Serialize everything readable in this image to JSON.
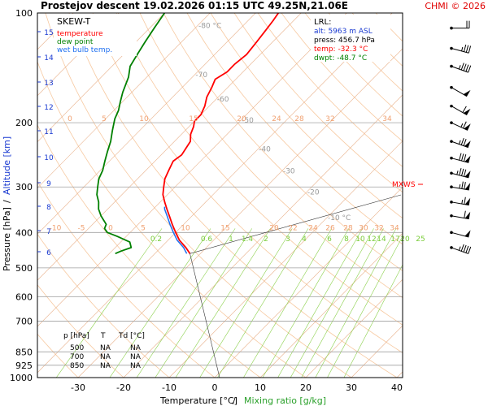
{
  "header": {
    "title": "Prostejov   descent   19.02.2026 01:15 UTC   49.25N,21.06E",
    "copyright": "CHMI © 2026"
  },
  "legend": {
    "title": "SKEW-T",
    "items": [
      {
        "label": "temperature",
        "color": "#ff0000"
      },
      {
        "label": "dew point",
        "color": "#008000"
      },
      {
        "label": "wet bulb temp.",
        "color": "#1e6ff0"
      }
    ]
  },
  "lrl": {
    "title": "LRL:",
    "rows": [
      {
        "text": "alt: 5963 m ASL",
        "color": "#1a3ad1"
      },
      {
        "text": "press: 456.7 hPa",
        "color": "#000000"
      },
      {
        "text": "temp: -32.3 °C",
        "color": "#ff0000"
      },
      {
        "text": "dwpt: -48.7 °C",
        "color": "#008000"
      }
    ]
  },
  "mxws_label": "MXWS",
  "level_table": {
    "headers": [
      "p [hPa]",
      "T",
      "Td [°C]"
    ],
    "rows": [
      [
        "500",
        "NA",
        "NA"
      ],
      [
        "700",
        "NA",
        "NA"
      ],
      [
        "850",
        "NA",
        "NA"
      ]
    ]
  },
  "chart_data": {
    "type": "line",
    "title": "Prostejov   descent   19.02.2026 01:15 UTC   49.25N,21.06E",
    "xlabel": "Temperature [°C]",
    "xlabel2": "Mixing ratio [g/kg]",
    "ylabel": "Pressure [hPa]",
    "ylabel2": "Altitude [km]",
    "x_ticks": [
      -30,
      -20,
      -10,
      0,
      10,
      20,
      30,
      40
    ],
    "pressure_ticks": [
      100,
      200,
      300,
      400,
      500,
      600,
      700,
      850,
      925,
      1000
    ],
    "altitude_ticks": [
      4,
      5,
      6,
      7,
      8,
      9,
      10,
      11,
      12,
      13,
      14,
      15
    ],
    "altitude_labels": [
      "6",
      "7",
      "8",
      "9",
      "10",
      "11",
      "12",
      "13",
      "14",
      "15"
    ],
    "isotherm_labels": [
      "-80 °C",
      "-70",
      "-60",
      "-50",
      "-40",
      "-30",
      "-20",
      "-10 °C"
    ],
    "isotherm_values": [
      -80,
      -70,
      -60,
      -50,
      -40,
      -30,
      -20,
      -10
    ],
    "dry_adiabat_labels_200": [
      "0",
      "5",
      "10",
      "15",
      "20",
      "24",
      "28",
      "32",
      "34"
    ],
    "dry_adiabat_labels_400": [
      "-10",
      "-5",
      "0",
      "5",
      "10",
      "15",
      "20",
      "22",
      "24",
      "26",
      "28",
      "30",
      "32",
      "34"
    ],
    "mixing_ratio_labels": [
      "0.2",
      "0.6",
      "1",
      "1.4",
      "2",
      "3",
      "4",
      "6",
      "8",
      "10",
      "12",
      "14",
      "17",
      "20",
      "25"
    ],
    "mixing_ratio_values": [
      0.2,
      0.6,
      1,
      1.4,
      2,
      3,
      4,
      6,
      8,
      10,
      12,
      14,
      17,
      20,
      25
    ],
    "mxws_pressure": 295,
    "series": [
      {
        "name": "temperature",
        "color": "#ff0000",
        "points": [
          [
            457,
            -32.3
          ],
          [
            440,
            -34.5
          ],
          [
            420,
            -37.5
          ],
          [
            400,
            -40.0
          ],
          [
            380,
            -42.5
          ],
          [
            360,
            -45.0
          ],
          [
            345,
            -47.0
          ],
          [
            330,
            -49.0
          ],
          [
            315,
            -51.0
          ],
          [
            300,
            -52.5
          ],
          [
            285,
            -54.0
          ],
          [
            270,
            -55.0
          ],
          [
            255,
            -56.0
          ],
          [
            245,
            -55.5
          ],
          [
            235,
            -56.0
          ],
          [
            225,
            -56.5
          ],
          [
            215,
            -58.0
          ],
          [
            205,
            -59.0
          ],
          [
            198,
            -60.0
          ],
          [
            190,
            -60.0
          ],
          [
            180,
            -61.0
          ],
          [
            170,
            -62.5
          ],
          [
            160,
            -63.5
          ],
          [
            152,
            -64.5
          ],
          [
            145,
            -63.5
          ],
          [
            138,
            -63.5
          ],
          [
            130,
            -63.0
          ],
          [
            120,
            -63.5
          ],
          [
            112,
            -64.0
          ],
          [
            105,
            -64.5
          ],
          [
            100,
            -65.0
          ]
        ]
      },
      {
        "name": "dew point",
        "color": "#008000",
        "points": [
          [
            457,
            -48.7
          ],
          [
            450,
            -48.0
          ],
          [
            440,
            -46.5
          ],
          [
            425,
            -48.0
          ],
          [
            410,
            -52.0
          ],
          [
            400,
            -55.0
          ],
          [
            390,
            -56.5
          ],
          [
            380,
            -57.0
          ],
          [
            370,
            -58.5
          ],
          [
            360,
            -60.0
          ],
          [
            345,
            -62.0
          ],
          [
            330,
            -63.5
          ],
          [
            315,
            -65.5
          ],
          [
            300,
            -67.0
          ],
          [
            285,
            -68.5
          ],
          [
            270,
            -69.5
          ],
          [
            255,
            -71.0
          ],
          [
            240,
            -72.5
          ],
          [
            225,
            -74.0
          ],
          [
            210,
            -76.0
          ],
          [
            195,
            -78.0
          ],
          [
            185,
            -79.0
          ],
          [
            175,
            -80.5
          ],
          [
            165,
            -82.0
          ],
          [
            150,
            -84.0
          ],
          [
            140,
            -86.0
          ],
          [
            130,
            -87.0
          ],
          [
            120,
            -88.0
          ],
          [
            110,
            -89.0
          ],
          [
            100,
            -90.0
          ]
        ]
      },
      {
        "name": "wet bulb temp.",
        "color": "#1e6ff0",
        "points": [
          [
            457,
            -33.0
          ],
          [
            440,
            -35.0
          ],
          [
            420,
            -38.0
          ],
          [
            400,
            -40.5
          ],
          [
            380,
            -43.0
          ],
          [
            360,
            -45.5
          ],
          [
            345,
            -47.5
          ],
          [
            340,
            -48.0
          ]
        ]
      }
    ],
    "wind_barbs": [
      {
        "p": 110,
        "dir": 270,
        "speed": 20
      },
      {
        "p": 125,
        "dir": 285,
        "speed": 35
      },
      {
        "p": 140,
        "dir": 290,
        "speed": 45
      },
      {
        "p": 160,
        "dir": 300,
        "speed": 50
      },
      {
        "p": 180,
        "dir": 300,
        "speed": 60
      },
      {
        "p": 200,
        "dir": 295,
        "speed": 65
      },
      {
        "p": 225,
        "dir": 290,
        "speed": 75
      },
      {
        "p": 250,
        "dir": 285,
        "speed": 80
      },
      {
        "p": 275,
        "dir": 285,
        "speed": 85
      },
      {
        "p": 300,
        "dir": 280,
        "speed": 75
      },
      {
        "p": 330,
        "dir": 280,
        "speed": 65
      },
      {
        "p": 360,
        "dir": 280,
        "speed": 60
      },
      {
        "p": 400,
        "dir": 285,
        "speed": 50
      },
      {
        "p": 440,
        "dir": 290,
        "speed": 45
      }
    ]
  }
}
